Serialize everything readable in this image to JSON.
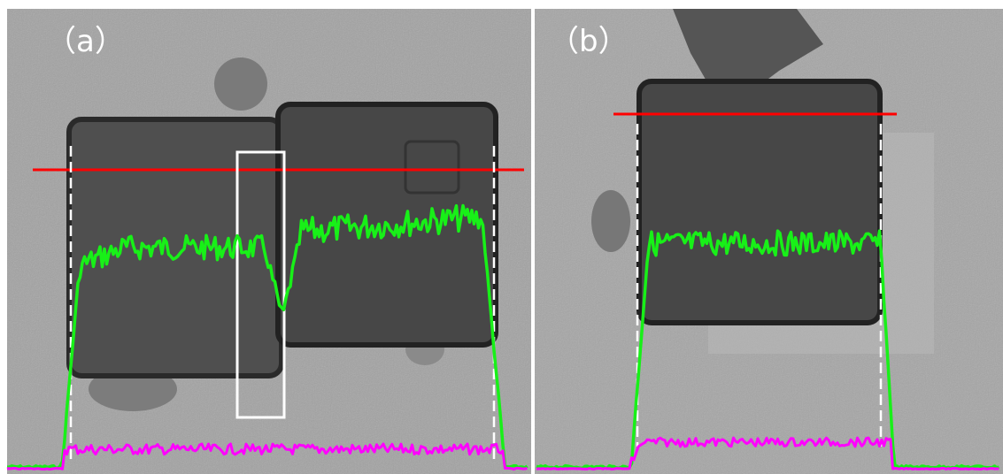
{
  "panels": [
    {
      "label": "（a）"
    },
    {
      "label": "（b）"
    }
  ]
}
